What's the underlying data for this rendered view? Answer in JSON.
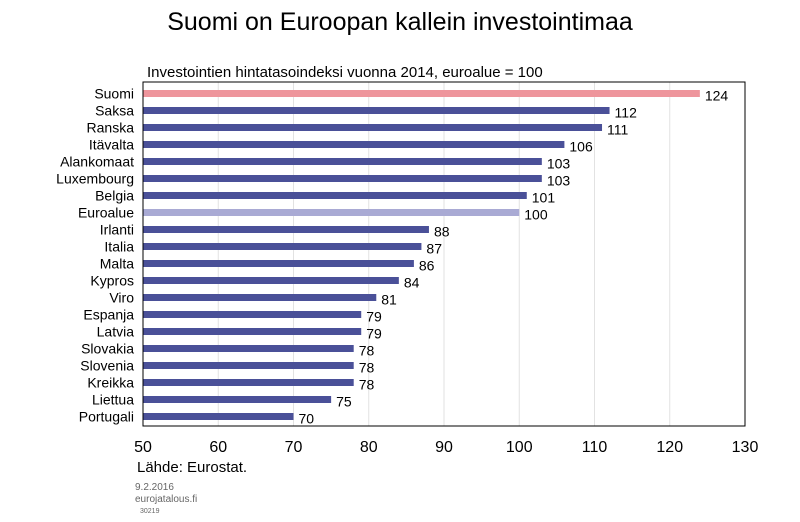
{
  "title": "Suomi on Euroopan kallein investointimaa",
  "source": "Lähde: Eurostat.",
  "footer": {
    "date": "9.2.2016",
    "site": "eurojatalous.fi",
    "code": "30219"
  },
  "chart_data": {
    "type": "bar",
    "orientation": "horizontal",
    "subtitle": "Investointien hintatasoindeksi vuonna 2014, euroalue = 100",
    "categories": [
      "Suomi",
      "Saksa",
      "Ranska",
      "Itävalta",
      "Alankomaat",
      "Luxembourg",
      "Belgia",
      "Euroalue",
      "Irlanti",
      "Italia",
      "Malta",
      "Kypros",
      "Viro",
      "Espanja",
      "Latvia",
      "Slovakia",
      "Slovenia",
      "Kreikka",
      "Liettua",
      "Portugali"
    ],
    "values": [
      124,
      112,
      111,
      106,
      103,
      103,
      101,
      100,
      88,
      87,
      86,
      84,
      81,
      79,
      79,
      78,
      78,
      78,
      75,
      70
    ],
    "xlim": [
      50,
      130
    ],
    "xticks": [
      50,
      60,
      70,
      80,
      90,
      100,
      110,
      120,
      130
    ],
    "grid": true,
    "colors": {
      "default": "#4a5098",
      "highlight": "#ee959c",
      "reference": "#a9aad4"
    },
    "highlight_index": 0,
    "reference_index": 7
  }
}
